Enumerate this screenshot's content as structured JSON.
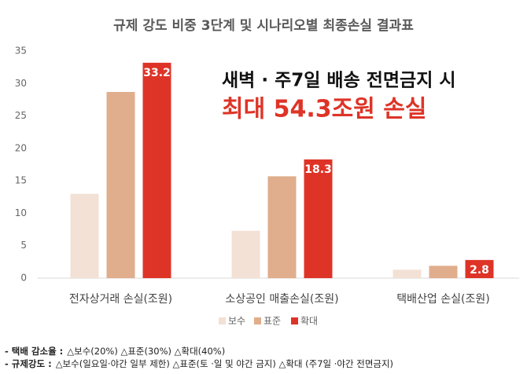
{
  "chart_data": {
    "type": "bar",
    "title": "규제 강도 비중 3단계 및 시나리오별 최종손실 결과표",
    "categories": [
      "전자상거래 손실(조원)",
      "소상공인 매출손실(조원)",
      "택배산업 손실(조원)"
    ],
    "series": [
      {
        "name": "보수",
        "color": "#f3e1d5",
        "values": [
          13.0,
          7.3,
          1.3
        ]
      },
      {
        "name": "표준",
        "color": "#e0ae8c",
        "values": [
          28.7,
          15.7,
          1.9
        ]
      },
      {
        "name": "확대",
        "color": "#de3427",
        "values": [
          33.2,
          18.3,
          2.8
        ],
        "show_labels": true
      }
    ],
    "ylim": [
      0,
      35
    ],
    "yticks": [
      0,
      5,
      10,
      15,
      20,
      25,
      30,
      35
    ],
    "grid": false,
    "legend": "bottom",
    "annotations": [
      {
        "text": "새벽 · 주7일 배송 전면금지 시",
        "color": "#111111"
      },
      {
        "text": "최대 54.3조원 손실",
        "color": "#de3427"
      }
    ],
    "notes": [
      {
        "label": "- 택배 감소율 :",
        "text": "△보수(20%) △표준(30%) △확대(40%)"
      },
      {
        "label": "- 규제강도 :",
        "text": "△보수(일요일·야간 일부 제한) △표준(토 ·일 및 야간 금지) △확대 (주7일 ·야간 전면금지)"
      }
    ]
  }
}
